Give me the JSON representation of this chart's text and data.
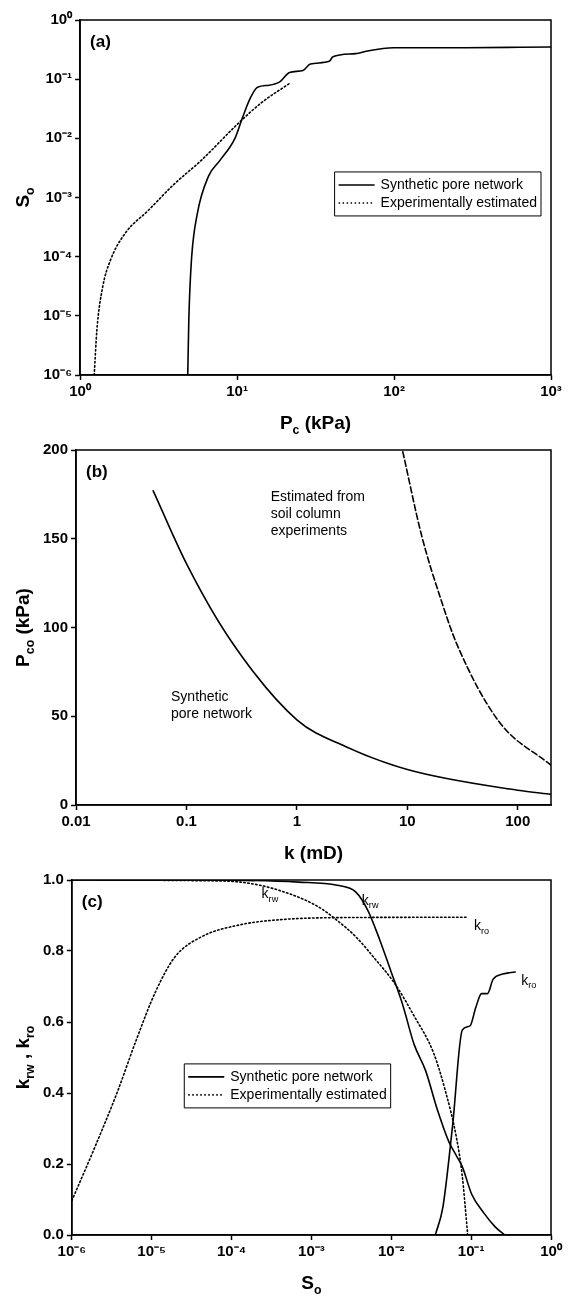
{
  "chart_data": [
    {
      "type": "line",
      "xlabel": "P$_{c}$ (kPa)",
      "ylabel": "S$_{o}$",
      "annotations": [
        "(a)"
      ],
      "log": "xy",
      "xlim": [
        1,
        1000
      ],
      "ylim": [
        1e-06,
        1
      ],
      "xticks": [
        {
          "value": 1,
          "label": "10⁰"
        },
        {
          "value": 10,
          "label": "10¹"
        },
        {
          "value": 100,
          "label": "10²"
        },
        {
          "value": 1000,
          "label": "10³"
        }
      ],
      "yticks": [
        {
          "value": 1e-06,
          "label": "10⁻⁶"
        },
        {
          "value": 1e-05,
          "label": "10⁻⁵"
        },
        {
          "value": 0.0001,
          "label": "10⁻⁴"
        },
        {
          "value": 0.001,
          "label": "10⁻³"
        },
        {
          "value": 0.01,
          "label": "10⁻²"
        },
        {
          "value": 0.1,
          "label": "10⁻¹"
        },
        {
          "value": 1,
          "label": "10⁰"
        }
      ],
      "legend": "right",
      "marker": "none",
      "series": [
        {
          "name": "Synthetic pore network",
          "color": "#000000",
          "line_style": "solid",
          "x": [
            4.85,
            4.93,
            5.12,
            5.57,
            6.58,
            7.76,
            9.69,
            10.8,
            12.1,
            13.5,
            16,
            18.8,
            21.6,
            26.3,
            29.3,
            38.7,
            40.8,
            57,
            67.5,
            99,
            284,
            1000
          ],
          "values": [
            1e-06,
            9e-06,
            8.7e-05,
            0.00052,
            0.0023,
            0.0042,
            0.01,
            0.022,
            0.047,
            0.073,
            0.079,
            0.091,
            0.13,
            0.14,
            0.18,
            0.2,
            0.24,
            0.27,
            0.3,
            0.34,
            0.34,
            0.35
          ]
        },
        {
          "name": "Experimentally estimated",
          "color": "#000000",
          "line_style": "dotted",
          "x": [
            1.23,
            1.28,
            1.39,
            1.56,
            1.94,
            2.71,
            3.99,
            5.89,
            10.2,
            14.3,
            21.6
          ],
          "values": [
            1e-06,
            5.9e-06,
            3e-05,
            8.7e-05,
            0.00025,
            0.0006,
            0.0017,
            0.0042,
            0.018,
            0.04,
            0.085
          ]
        }
      ]
    },
    {
      "type": "line",
      "xlabel": "k (mD)",
      "ylabel": "P$_{co}$ (kPa)",
      "log": "x",
      "xlim": [
        0.01,
        200
      ],
      "ylim": [
        0,
        200
      ],
      "xticks": [
        0.01,
        0.1,
        1,
        10,
        100
      ],
      "yticks": [
        0,
        50,
        100,
        150,
        200
      ],
      "marker": "none",
      "annotations": [
        "(b)",
        "Synthetic\npore network",
        "Estimated from\nsoil column\nexperiments"
      ],
      "series": [
        {
          "color": "#000000",
          "line_style": "solid",
          "x": [
            0.05,
            0.1,
            0.25,
            1,
            2.75,
            10,
            100,
            200
          ],
          "values": [
            177,
            136,
            93,
            48,
            33,
            20,
            8.3,
            6
          ]
        },
        {
          "color": "#000000",
          "line_style": "dashed",
          "x": [
            9.1,
            13.5,
            20.6,
            28,
            67,
            200
          ],
          "values": [
            199,
            151.6,
            114,
            90.8,
            47.3,
            22.4
          ]
        }
      ]
    },
    {
      "type": "line",
      "xlabel": "S$_{o}$",
      "ylabel": "k$_{rw}$ , k$_{ro}$",
      "log": "x",
      "xlim": [
        1e-06,
        1
      ],
      "ylim": [
        0,
        1
      ],
      "xticks": [
        {
          "value": 1e-06,
          "label": "10⁻⁶"
        },
        {
          "value": 1e-05,
          "label": "10⁻⁵"
        },
        {
          "value": 0.0001,
          "label": "10⁻⁴"
        },
        {
          "value": 0.001,
          "label": "10⁻³"
        },
        {
          "value": 0.01,
          "label": "10⁻²"
        },
        {
          "value": 0.1,
          "label": "10⁻¹"
        },
        {
          "value": 1,
          "label": "10⁰"
        }
      ],
      "yticks": [
        {
          "value": 0,
          "label": "0.0"
        },
        {
          "value": 0.2,
          "label": "0.2"
        },
        {
          "value": 0.4,
          "label": "0.4"
        },
        {
          "value": 0.6,
          "label": "0.6"
        },
        {
          "value": 0.8,
          "label": "0.8"
        },
        {
          "value": 1,
          "label": "1.0"
        }
      ],
      "legend": "center",
      "marker": "none",
      "annotations": [
        "(c)",
        {
          "text": "k$_{rw}$",
          "x": 0.0002,
          "y": 0.985
        },
        {
          "text": "k$_{rw}$",
          "x": 0.0036,
          "y": 0.966
        },
        {
          "text": "k$_{ro}$",
          "x": 0.0914,
          "y": 0.895
        },
        {
          "text": "k$_{ro}$",
          "x": 0.356,
          "y": 0.741
        }
      ],
      "series": [
        {
          "name": "Synthetic pore network",
          "color": "#000000",
          "line_style": "solid",
          "x": [
            1e-06,
            4.2e-05,
            0.00069,
            0.0021,
            0.0036,
            0.0051,
            0.0071,
            0.0099,
            0.0138,
            0.0193,
            0.0269,
            0.0376,
            0.0525,
            0.0655,
            0.077,
            0.102,
            0.143,
            0.2,
            0.263
          ],
          "values": [
            1,
            1,
            0.994,
            0.985,
            0.966,
            0.914,
            0.834,
            0.743,
            0.651,
            0.537,
            0.463,
            0.354,
            0.263,
            0.223,
            0.194,
            0.114,
            0.063,
            0.023,
            0
          ]
        },
        {
          "color": "#000000",
          "line_style": "solid",
          "x": [
            0.0356,
            0.0444,
            0.0586,
            0.0774,
            0.0968,
            0.114,
            0.135,
            0.16,
            0.188,
            0.249,
            0.356
          ],
          "values": [
            0,
            0.08,
            0.309,
            0.577,
            0.589,
            0.64,
            0.68,
            0.68,
            0.72,
            0.735,
            0.741
          ]
        },
        {
          "name": "Experimentally estimated",
          "color": "#000000",
          "line_style": "dotted",
          "x": [
            1e-06,
            4.2e-05,
            0.000129,
            0.000393,
            0.00119,
            0.0021,
            0.0036,
            0.0063,
            0.011,
            0.0193,
            0.0337,
            0.0469,
            0.0655,
            0.077,
            0.0906
          ],
          "values": [
            1,
            0.998,
            0.994,
            0.971,
            0.926,
            0.886,
            0.84,
            0.777,
            0.709,
            0.617,
            0.514,
            0.411,
            0.274,
            0.171,
            0
          ]
        },
        {
          "color": "#000000",
          "line_style": "dotted",
          "x": [
            1e-06,
            1.88e-06,
            3.67e-06,
            6.4e-06,
            1.12e-05,
            1.95e-05,
            4.2e-05,
            0.000129,
            0.000393,
            0.0021,
            0.0914
          ],
          "values": [
            0.097,
            0.24,
            0.4,
            0.549,
            0.686,
            0.783,
            0.84,
            0.874,
            0.888,
            0.894,
            0.895
          ]
        }
      ]
    }
  ]
}
